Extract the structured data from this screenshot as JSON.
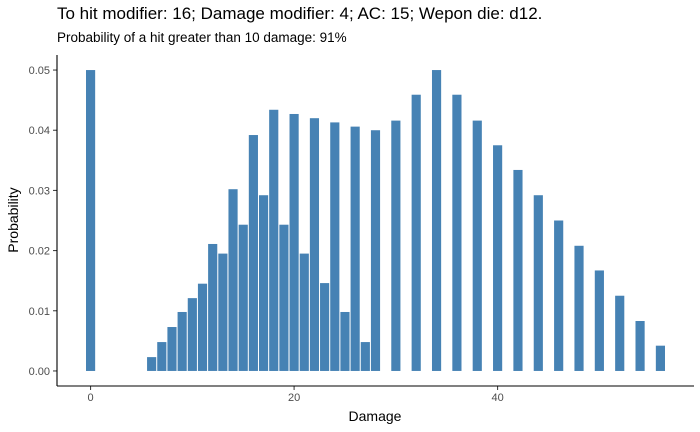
{
  "chart_data": {
    "type": "bar",
    "title": "To hit modifier: 16; Damage modifier: 4; AC: 15; Wepon die: d12.",
    "subtitle": "Probability of a hit greater than 10 damage: 91%",
    "xlabel": "Damage",
    "ylabel": "Probability",
    "xlim": [
      -3.3,
      59.3
    ],
    "ylim": [
      -0.0025,
      0.0525
    ],
    "x_ticks": [
      0,
      20,
      40
    ],
    "y_ticks": [
      0.0,
      0.01,
      0.02,
      0.03,
      0.04,
      0.05
    ],
    "y_tick_labels": [
      "0.00",
      "0.01",
      "0.02",
      "0.03",
      "0.04",
      "0.05"
    ],
    "bar_color": "#4682B4",
    "grid": false,
    "x": [
      0,
      6,
      7,
      8,
      9,
      10,
      11,
      12,
      13,
      14,
      15,
      16,
      17,
      18,
      19,
      20,
      21,
      22,
      23,
      24,
      25,
      26,
      27,
      28,
      30,
      32,
      34,
      36,
      38,
      40,
      42,
      44,
      46,
      48,
      50,
      52,
      54,
      56
    ],
    "values": [
      0.05,
      0.0023,
      0.0048,
      0.0073,
      0.0098,
      0.0121,
      0.0145,
      0.0211,
      0.0195,
      0.0302,
      0.0243,
      0.0392,
      0.0292,
      0.0434,
      0.0243,
      0.0427,
      0.0195,
      0.042,
      0.0146,
      0.0413,
      0.0098,
      0.0406,
      0.0048,
      0.04,
      0.0416,
      0.0459,
      0.05,
      0.0459,
      0.0416,
      0.0375,
      0.0334,
      0.0292,
      0.025,
      0.0208,
      0.0167,
      0.0125,
      0.0083,
      0.0042
    ]
  }
}
